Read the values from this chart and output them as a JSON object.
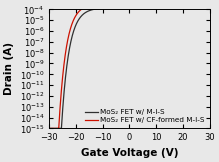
{
  "title": "",
  "xlabel": "Gate Voltage (V)",
  "ylabel": "Drain (A)",
  "xlim": [
    -30,
    30
  ],
  "ylim_log": [
    -15,
    -4
  ],
  "legend": [
    "MoS₂ FET w/ M-I-S",
    "MoS₂ FET w/ CF-formed M-I-S"
  ],
  "line_colors": [
    "#303030",
    "#cc1100"
  ],
  "background_color": "#e8e8e8",
  "xlabel_fontsize": 7.5,
  "ylabel_fontsize": 7.5,
  "tick_fontsize": 6,
  "legend_fontsize": 5.2,
  "black_Vt": -25.5,
  "black_SS": 2.8,
  "black_Ion": 0.00015,
  "black_Ioff": 1e-15,
  "black_Vsat": -10,
  "black_sat_slope": 0.25,
  "red_Vt": -26.5,
  "red_SS": 2.3,
  "red_Ion": 0.00035,
  "red_Ioff": 1e-15,
  "red_Vsat": -10,
  "red_sat_slope": 0.22
}
